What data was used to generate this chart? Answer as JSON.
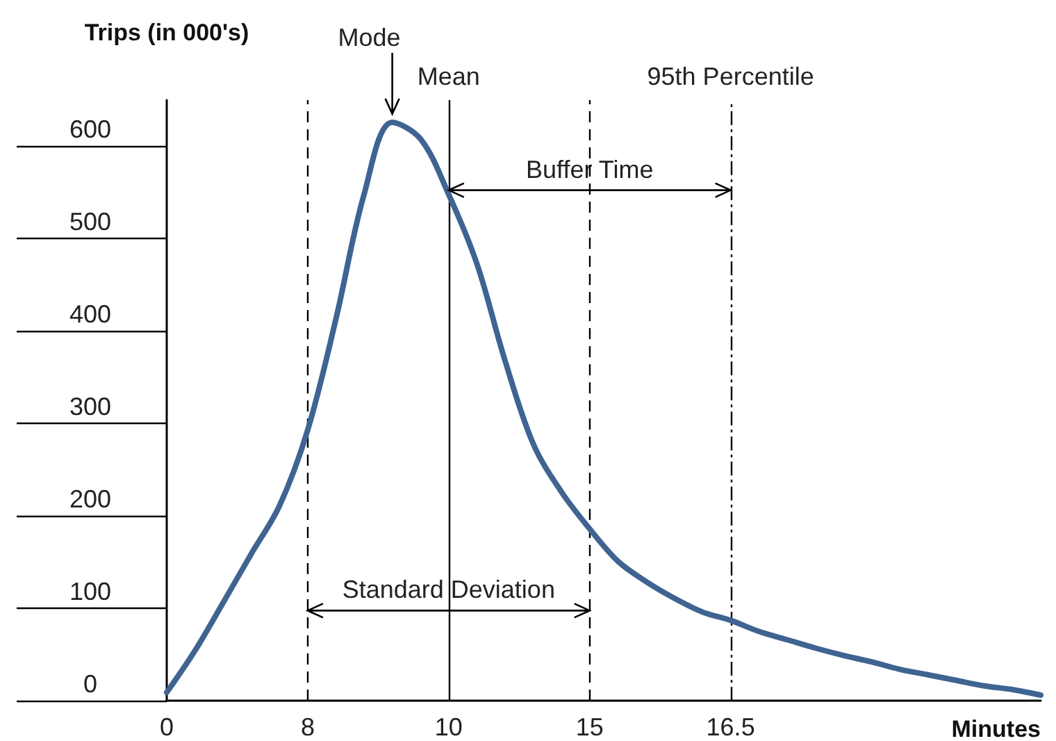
{
  "chart_data": {
    "type": "line",
    "xlabel": "Minutes",
    "ylabel": "Trips (in 000's)",
    "categories": [
      "0",
      null,
      null,
      null,
      null,
      "8",
      null,
      null,
      null,
      null,
      "10",
      null,
      null,
      null,
      null,
      "15",
      null,
      null,
      null,
      null,
      "16.5",
      null,
      null,
      null,
      null,
      null,
      null,
      null,
      null,
      null,
      null,
      null
    ],
    "series": [
      {
        "color": "#3f6491",
        "values": [
          9,
          54,
          106,
          159,
          211,
          293,
          413,
          548,
          626,
          608,
          548,
          473,
          368,
          278,
          226,
          186,
          151,
          129,
          111,
          96,
          87,
          75,
          66,
          57,
          49,
          42,
          34,
          28,
          22,
          16,
          12,
          6
        ]
      }
    ],
    "ylim": [
      0,
      650
    ],
    "yticks": [
      0,
      100,
      200,
      300,
      400,
      500,
      600
    ],
    "grid": false,
    "ref_lines": [
      {
        "axis": "x",
        "value": "8",
        "line_style": "dashed",
        "color": "#000000"
      },
      {
        "axis": "x",
        "value": "10",
        "label": "Mean",
        "line_style": "solid",
        "color": "#000000"
      },
      {
        "axis": "x",
        "value": "15",
        "line_style": "dashed",
        "color": "#000000"
      },
      {
        "axis": "x",
        "value": "16.5",
        "label": "95th Percentile",
        "line_style": "dashdot",
        "color": "#000000"
      }
    ],
    "annotations": [
      "Mode",
      "Buffer Time",
      "Standard Deviation"
    ]
  }
}
